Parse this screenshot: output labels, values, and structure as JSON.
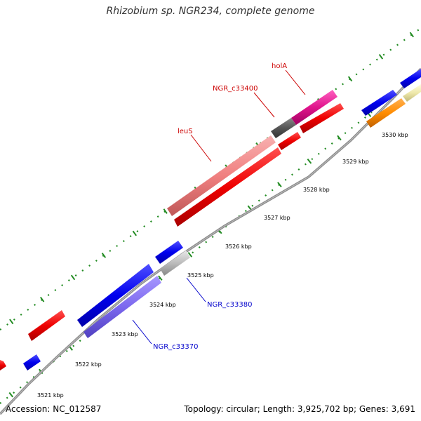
{
  "title": "Rhizobium sp. NGR234, complete genome",
  "footer": {
    "accession": "Accession: NC_012587",
    "summary": "Topology: circular; Length: 3,925,702 bp; Genes: 3,691"
  },
  "ticks": [
    "3521 kbp",
    "3522 kbp",
    "3523 kbp",
    "3524 kbp",
    "3525 kbp",
    "3526 kbp",
    "3527 kbp",
    "3528 kbp",
    "3529 kbp",
    "3530 kbp"
  ],
  "gene_labels": {
    "holA": "holA",
    "ngr_c33400": "NGR_c33400",
    "leuS": "leuS",
    "ngr_c33380": "NGR_c33380",
    "ngr_c33370": "NGR_c33370"
  },
  "colors": {
    "backbone": "#808080",
    "tick_green": "#228B22",
    "forward_blue": "#0000EE",
    "red": "#EE0000",
    "pink": "#F08080",
    "magenta": "#E0148C",
    "dark_gray": "#555555",
    "light_gray": "#BBBBBB",
    "lavender": "#7B68EE",
    "orange": "#FF8C00",
    "pale_yellow": "#EEE8AA",
    "label_red": "#CC0000",
    "label_blue": "#0000CC"
  }
}
